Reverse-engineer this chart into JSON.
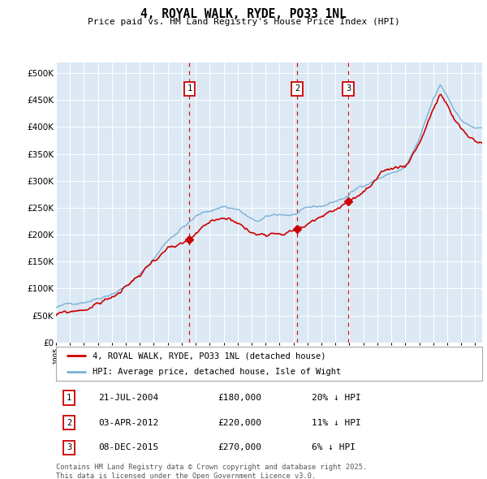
{
  "title": "4, ROYAL WALK, RYDE, PO33 1NL",
  "subtitle": "Price paid vs. HM Land Registry's House Price Index (HPI)",
  "ylim": [
    0,
    520000
  ],
  "yticks": [
    0,
    50000,
    100000,
    150000,
    200000,
    250000,
    300000,
    350000,
    400000,
    450000,
    500000
  ],
  "xlim_start": 1995.0,
  "xlim_end": 2025.5,
  "bg_color": "#dce9f5",
  "grid_color": "#ffffff",
  "legend_entries": [
    {
      "label": "4, ROYAL WALK, RYDE, PO33 1NL (detached house)",
      "color": "#cc0000"
    },
    {
      "label": "HPI: Average price, detached house, Isle of Wight",
      "color": "#6699cc"
    }
  ],
  "transactions": [
    {
      "num": 1,
      "date": "21-JUL-2004",
      "price": 180000,
      "pct": "20%",
      "dir": "↓",
      "x_year": 2004.55
    },
    {
      "num": 2,
      "date": "03-APR-2012",
      "price": 220000,
      "pct": "11%",
      "dir": "↓",
      "x_year": 2012.25
    },
    {
      "num": 3,
      "date": "08-DEC-2015",
      "price": 270000,
      "pct": "6%",
      "dir": "↓",
      "x_year": 2015.92
    }
  ],
  "footer": "Contains HM Land Registry data © Crown copyright and database right 2025.\nThis data is licensed under the Open Government Licence v3.0.",
  "hpi_color": "#7ab0d4",
  "price_color": "#cc0000"
}
